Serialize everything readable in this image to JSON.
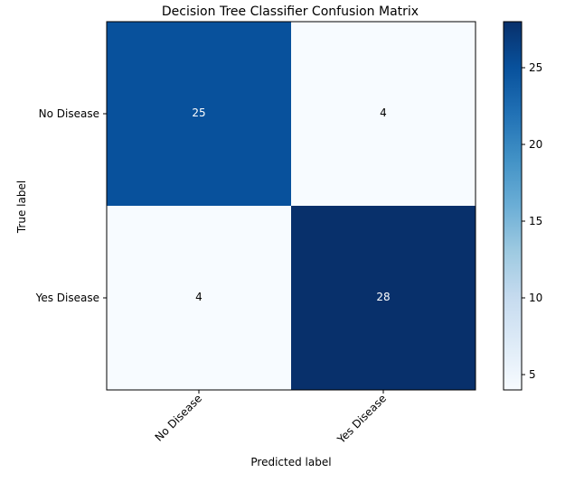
{
  "chart_data": {
    "type": "heatmap",
    "title": "Decision Tree Classifier Confusion Matrix",
    "xlabel": "Predicted label",
    "ylabel": "True label",
    "x_categories": [
      "No Disease",
      "Yes Disease"
    ],
    "y_categories": [
      "No Disease",
      "Yes Disease"
    ],
    "values": [
      [
        25,
        4
      ],
      [
        4,
        28
      ]
    ],
    "colormap": "Blues",
    "colorbar": {
      "range": [
        4,
        28
      ],
      "ticks": [
        5,
        10,
        15,
        20,
        25
      ],
      "tick_labels": [
        "5",
        "10",
        "15",
        "20",
        "25"
      ]
    },
    "text_color_dark_cell": "#ffffff",
    "text_color_light_cell": "#000000",
    "grid": false
  }
}
